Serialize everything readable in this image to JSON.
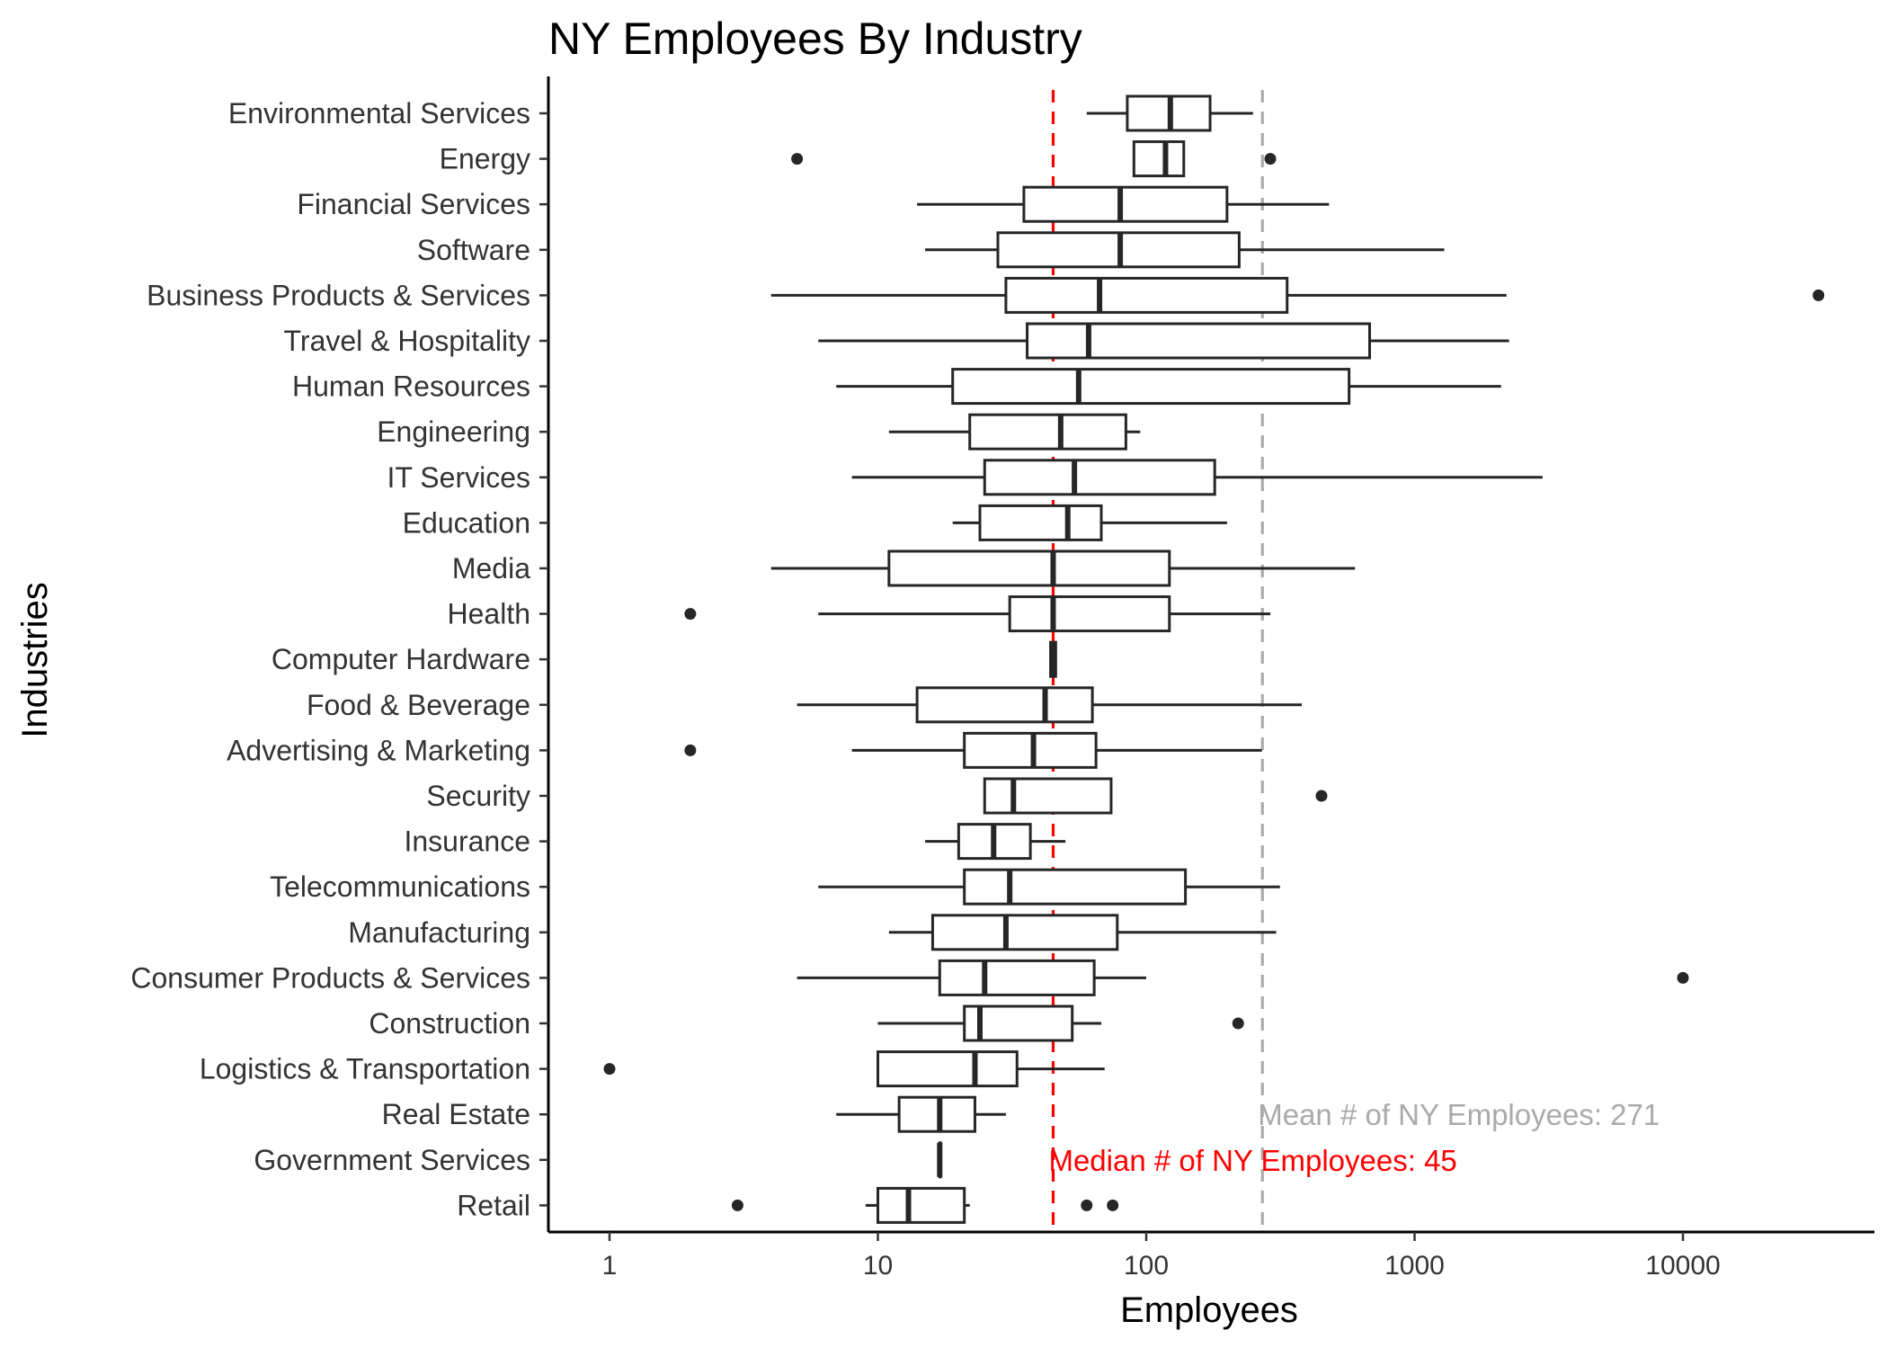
{
  "chart_data": {
    "type": "boxplot",
    "title": "NY Employees By Industry",
    "xlabel": "Employees",
    "ylabel": "Industries",
    "x_scale": "log10",
    "xlim": [
      0.6,
      55000
    ],
    "x_ticks": [
      1,
      10,
      100,
      1000,
      10000
    ],
    "x_tick_labels": [
      "1",
      "10",
      "100",
      "1000",
      "10000"
    ],
    "grid": false,
    "colors": {
      "box": "#262626",
      "median_line": "#ff0000",
      "mean_line": "#aaaaaa",
      "outlier": "#262626"
    },
    "reference_lines": [
      {
        "name": "median",
        "value": 45,
        "label": "Median # of NY Employees:  45",
        "color": "#ff0000"
      },
      {
        "name": "mean",
        "value": 271,
        "label": "Mean # of NY Employees:  271",
        "color": "#aaaaaa"
      }
    ],
    "categories": [
      "Environmental Services",
      "Energy",
      "Financial Services",
      "Software",
      "Business Products & Services",
      "Travel & Hospitality",
      "Human Resources",
      "Engineering",
      "IT Services",
      "Education",
      "Media",
      "Health",
      "Computer Hardware",
      "Food & Beverage",
      "Advertising & Marketing",
      "Security",
      "Insurance",
      "Telecommunications",
      "Manufacturing",
      "Consumer Products & Services",
      "Construction",
      "Logistics & Transportation",
      "Real Estate",
      "Government Services",
      "Retail"
    ],
    "boxes": [
      {
        "category": "Environmental Services",
        "whisker_low": 60,
        "q1": 85,
        "median": 123,
        "q3": 173,
        "whisker_high": 250,
        "outliers": []
      },
      {
        "category": "Energy",
        "whisker_low": 90,
        "q1": 90,
        "median": 118,
        "q3": 138,
        "whisker_high": 138,
        "outliers": [
          5,
          290
        ]
      },
      {
        "category": "Financial Services",
        "whisker_low": 14,
        "q1": 35,
        "median": 80,
        "q3": 200,
        "whisker_high": 480,
        "outliers": []
      },
      {
        "category": "Software",
        "whisker_low": 15,
        "q1": 28,
        "median": 80,
        "q3": 222,
        "whisker_high": 1290,
        "outliers": []
      },
      {
        "category": "Business Products & Services",
        "whisker_low": 4,
        "q1": 30,
        "median": 67,
        "q3": 335,
        "whisker_high": 2200,
        "outliers": [
          32000
        ]
      },
      {
        "category": "Travel & Hospitality",
        "whisker_low": 6,
        "q1": 36,
        "median": 61,
        "q3": 680,
        "whisker_high": 2250,
        "outliers": []
      },
      {
        "category": "Human Resources",
        "whisker_low": 7,
        "q1": 19,
        "median": 56,
        "q3": 570,
        "whisker_high": 2100,
        "outliers": []
      },
      {
        "category": "Engineering",
        "whisker_low": 11,
        "q1": 22,
        "median": 48,
        "q3": 84,
        "whisker_high": 95,
        "outliers": []
      },
      {
        "category": "IT Services",
        "whisker_low": 8,
        "q1": 25,
        "median": 54,
        "q3": 180,
        "whisker_high": 3000,
        "outliers": []
      },
      {
        "category": "Education",
        "whisker_low": 19,
        "q1": 24,
        "median": 51,
        "q3": 68,
        "whisker_high": 200,
        "outliers": []
      },
      {
        "category": "Media",
        "whisker_low": 4,
        "q1": 11,
        "median": 45,
        "q3": 122,
        "whisker_high": 600,
        "outliers": []
      },
      {
        "category": "Health",
        "whisker_low": 6,
        "q1": 31,
        "median": 45,
        "q3": 122,
        "whisker_high": 290,
        "outliers": [
          2
        ]
      },
      {
        "category": "Computer Hardware",
        "whisker_low": 44,
        "q1": 44,
        "median": 45,
        "q3": 46,
        "whisker_high": 46,
        "outliers": []
      },
      {
        "category": "Food & Beverage",
        "whisker_low": 5,
        "q1": 14,
        "median": 42,
        "q3": 63,
        "whisker_high": 380,
        "outliers": []
      },
      {
        "category": "Advertising & Marketing",
        "whisker_low": 8,
        "q1": 21,
        "median": 38,
        "q3": 65,
        "whisker_high": 270,
        "outliers": [
          2
        ]
      },
      {
        "category": "Security",
        "whisker_low": 25,
        "q1": 25,
        "median": 32,
        "q3": 74,
        "whisker_high": 74,
        "outliers": [
          450
        ]
      },
      {
        "category": "Insurance",
        "whisker_low": 15,
        "q1": 20,
        "median": 27,
        "q3": 37,
        "whisker_high": 50,
        "outliers": []
      },
      {
        "category": "Telecommunications",
        "whisker_low": 6,
        "q1": 21,
        "median": 31,
        "q3": 140,
        "whisker_high": 315,
        "outliers": []
      },
      {
        "category": "Manufacturing",
        "whisker_low": 11,
        "q1": 16,
        "median": 30,
        "q3": 78,
        "whisker_high": 305,
        "outliers": []
      },
      {
        "category": "Consumer Products & Services",
        "whisker_low": 5,
        "q1": 17,
        "median": 25,
        "q3": 64,
        "whisker_high": 100,
        "outliers": [
          10000
        ]
      },
      {
        "category": "Construction",
        "whisker_low": 10,
        "q1": 21,
        "median": 24,
        "q3": 53,
        "whisker_high": 68,
        "outliers": [
          220
        ]
      },
      {
        "category": "Logistics & Transportation",
        "whisker_low": 10,
        "q1": 10,
        "median": 23,
        "q3": 33,
        "whisker_high": 70,
        "outliers": [
          1
        ]
      },
      {
        "category": "Real Estate",
        "whisker_low": 7,
        "q1": 12,
        "median": 17,
        "q3": 23,
        "whisker_high": 30,
        "outliers": []
      },
      {
        "category": "Government Services",
        "whisker_low": 17,
        "q1": 17,
        "median": 17,
        "q3": 17,
        "whisker_high": 17,
        "outliers": []
      },
      {
        "category": "Retail",
        "whisker_low": 9,
        "q1": 10,
        "median": 13,
        "q3": 21,
        "whisker_high": 22,
        "outliers": [
          3,
          60,
          75
        ]
      }
    ]
  }
}
